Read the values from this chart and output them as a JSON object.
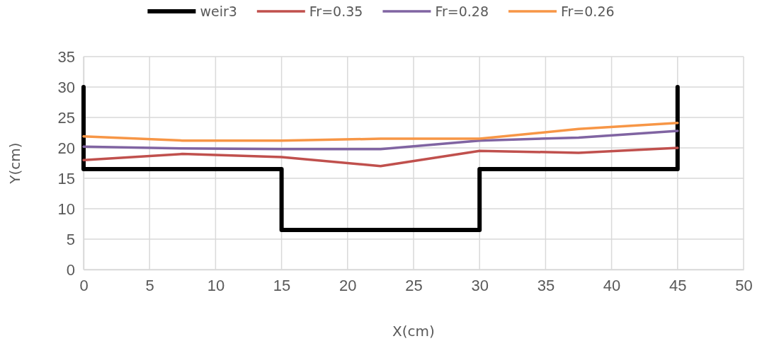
{
  "chart_data": {
    "type": "line",
    "xlabel": "X(cm)",
    "ylabel": "Y(cm)",
    "xlim": [
      0,
      50
    ],
    "ylim": [
      0,
      35
    ],
    "xticks": [
      0,
      5,
      10,
      15,
      20,
      25,
      30,
      35,
      40,
      45,
      50
    ],
    "yticks": [
      0,
      5,
      10,
      15,
      20,
      25,
      30,
      35
    ],
    "grid": true,
    "legend": "top",
    "marker": "none",
    "line_style": "solid",
    "series": [
      {
        "name": "weir3",
        "color": "#000000",
        "x": [
          0,
          0,
          15,
          15,
          30,
          30,
          45,
          45
        ],
        "values": [
          30,
          16.5,
          16.5,
          6.5,
          6.5,
          16.5,
          16.5,
          30
        ]
      },
      {
        "name": "Fr=0.35",
        "color": "#c0504d",
        "x": [
          0,
          7.5,
          15,
          22.5,
          30,
          37.5,
          45
        ],
        "values": [
          18.0,
          19.0,
          18.5,
          17.0,
          19.5,
          19.2,
          20.0
        ]
      },
      {
        "name": "Fr=0.28",
        "color": "#8064a2",
        "x": [
          0,
          7.5,
          15,
          22.5,
          30,
          37.5,
          45
        ],
        "values": [
          20.2,
          19.9,
          19.8,
          19.8,
          21.2,
          21.7,
          22.8
        ]
      },
      {
        "name": "Fr=0.26",
        "color": "#f79646",
        "x": [
          0,
          7.5,
          15,
          22.5,
          30,
          37.5,
          45
        ],
        "values": [
          21.9,
          21.2,
          21.2,
          21.5,
          21.5,
          23.1,
          24.1
        ]
      }
    ]
  }
}
